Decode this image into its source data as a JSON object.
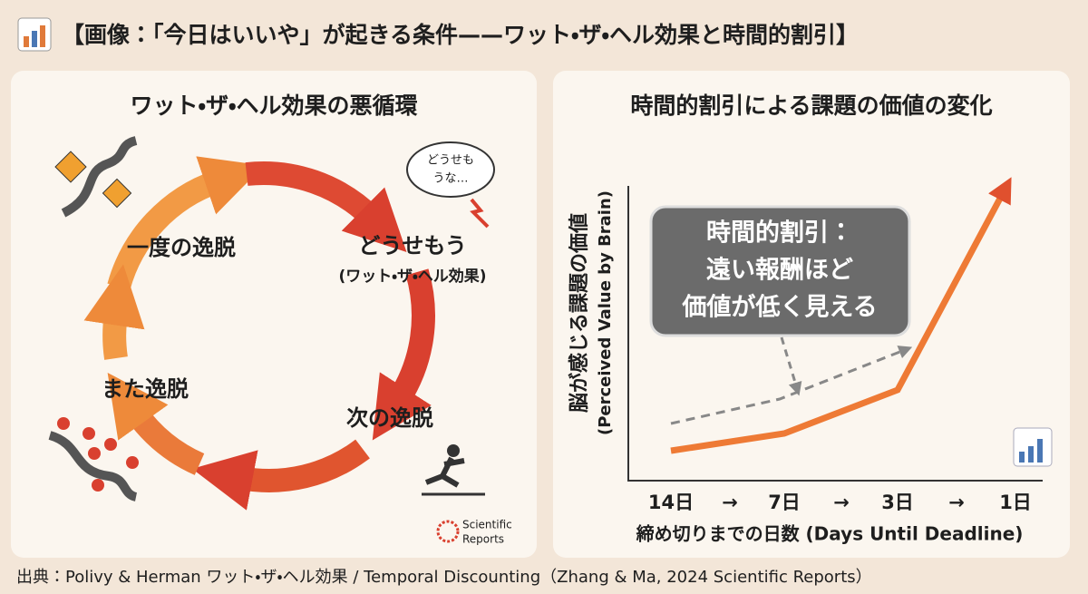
{
  "header": {
    "title": "【画像：「今日はいいや」が起きる条件——ワット・ザ・ヘル効果と時間的割引】"
  },
  "left": {
    "title": "ワット・ザ・ヘル効果の悪循環",
    "nodes": [
      "一度の逸脱",
      "どうせもう",
      "次の逸脱",
      "また逸脱"
    ],
    "node_subtitle": "(ワット・ザ・ヘル効果)",
    "bubble": [
      "どうせも",
      "うな…"
    ],
    "logo": [
      "Scientific",
      "Reports"
    ]
  },
  "right": {
    "title": "時間的割引による課題の価値の変化",
    "y_label": [
      "脳が感じる課題の価値",
      "(Perceived Value by Brain)"
    ],
    "callout": [
      "時間的割引：",
      "遠い報酬ほど",
      "価値が低く見える"
    ],
    "x_labels": [
      "14日",
      "→",
      "7日",
      "→",
      "3日",
      "→",
      "1日"
    ],
    "x_title": "締め切りまでの日数 (Days Until Deadline)"
  },
  "footer": {
    "source": "出典：Polivy & Herman ワット・ザ・ヘル効果 / Temporal Discounting（Zhang & Ma, 2024 Scientific Reports）"
  }
}
